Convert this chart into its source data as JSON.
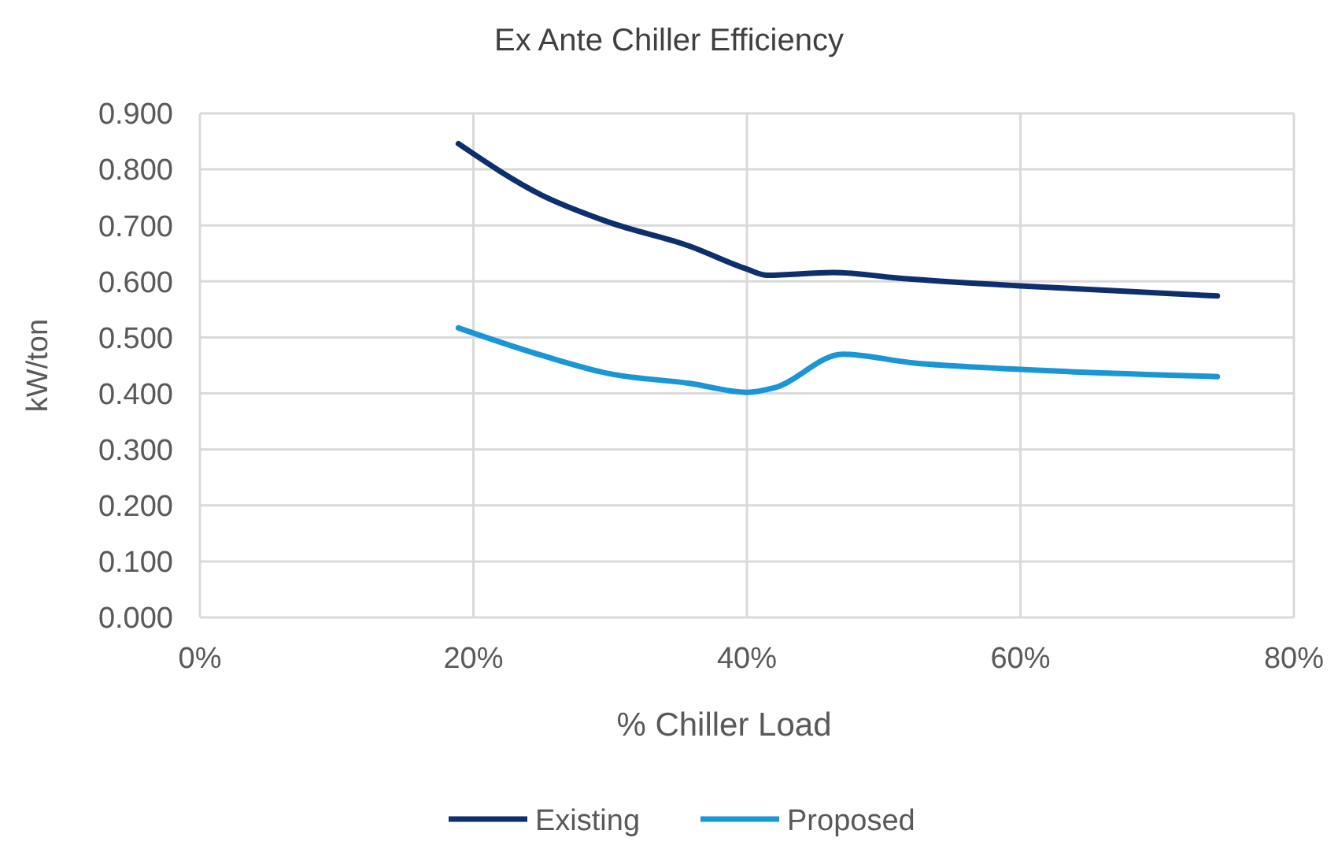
{
  "chart_data": {
    "type": "line",
    "title": "Ex Ante Chiller Efficiency",
    "xlabel": "% Chiller Load",
    "ylabel": "kW/ton",
    "series": [
      {
        "name": "Existing",
        "color": "#0e2f6e",
        "x": [
          18.9,
          25,
          30,
          35.8,
          40,
          41.5,
          46.3,
          51.5,
          60,
          74.4
        ],
        "values": [
          0.846,
          0.754,
          0.705,
          0.663,
          0.622,
          0.611,
          0.616,
          0.605,
          0.592,
          0.574
        ]
      },
      {
        "name": "Proposed",
        "color": "#1a96d6",
        "x": [
          18.9,
          25,
          30,
          35.8,
          40,
          42,
          47,
          52,
          60,
          74.4
        ],
        "values": [
          0.517,
          0.468,
          0.435,
          0.418,
          0.402,
          0.41,
          0.47,
          0.455,
          0.443,
          0.43
        ]
      }
    ],
    "xlim": [
      0,
      80
    ],
    "xticks": [
      {
        "value": 0,
        "label": "0%"
      },
      {
        "value": 20,
        "label": "20%"
      },
      {
        "value": 40,
        "label": "40%"
      },
      {
        "value": 60,
        "label": "60%"
      },
      {
        "value": 80,
        "label": "80%"
      }
    ],
    "ylim": [
      0,
      0.9
    ],
    "yticks": [
      {
        "value": 0,
        "label": "0.000"
      },
      {
        "value": 0.1,
        "label": "0.100"
      },
      {
        "value": 0.2,
        "label": "0.200"
      },
      {
        "value": 0.3,
        "label": "0.300"
      },
      {
        "value": 0.4,
        "label": "0.400"
      },
      {
        "value": 0.5,
        "label": "0.500"
      },
      {
        "value": 0.6,
        "label": "0.600"
      },
      {
        "value": 0.7,
        "label": "0.700"
      },
      {
        "value": 0.8,
        "label": "0.800"
      },
      {
        "value": 0.9,
        "label": "0.900"
      }
    ],
    "grid": true,
    "legend": "bottom",
    "line_style": "solid",
    "marker": "none"
  }
}
